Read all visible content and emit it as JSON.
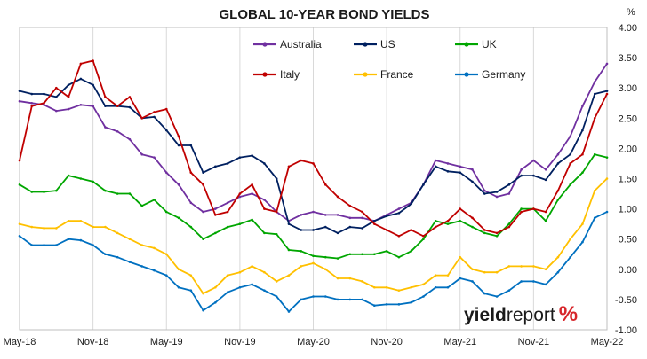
{
  "chart_data": {
    "type": "line",
    "title": "GLOBAL 10-YEAR BOND YIELDS",
    "ylabel": "%",
    "xlabel": "",
    "ylim": [
      -1.0,
      4.0
    ],
    "yticks": [
      -1.0,
      -0.5,
      0.0,
      0.5,
      1.0,
      1.5,
      2.0,
      2.5,
      3.0,
      3.5,
      4.0
    ],
    "ytick_labels": [
      "-1.00",
      "-0.50",
      "0.00",
      "0.50",
      "1.00",
      "1.50",
      "2.00",
      "2.50",
      "3.00",
      "3.50",
      "4.00"
    ],
    "x_ticks": [
      "May-18",
      "Nov-18",
      "May-19",
      "Nov-19",
      "May-20",
      "Nov-20",
      "May-21",
      "Nov-21",
      "May-22"
    ],
    "grid": "vertical",
    "legend": "top",
    "x": [
      "May-18",
      "Jun-18",
      "Jul-18",
      "Aug-18",
      "Sep-18",
      "Oct-18",
      "Nov-18",
      "Dec-18",
      "Jan-19",
      "Feb-19",
      "Mar-19",
      "Apr-19",
      "May-19",
      "Jun-19",
      "Jul-19",
      "Aug-19",
      "Sep-19",
      "Oct-19",
      "Nov-19",
      "Dec-19",
      "Jan-20",
      "Feb-20",
      "Mar-20",
      "Apr-20",
      "May-20",
      "Jun-20",
      "Jul-20",
      "Aug-20",
      "Sep-20",
      "Oct-20",
      "Nov-20",
      "Dec-20",
      "Jan-21",
      "Feb-21",
      "Mar-21",
      "Apr-21",
      "May-21",
      "Jun-21",
      "Jul-21",
      "Aug-21",
      "Sep-21",
      "Oct-21",
      "Nov-21",
      "Dec-21",
      "Jan-22",
      "Feb-22",
      "Mar-22",
      "Apr-22",
      "May-22"
    ],
    "series": [
      {
        "name": "Australia",
        "color": "#7030a0",
        "values": [
          2.78,
          2.75,
          2.72,
          2.62,
          2.65,
          2.72,
          2.7,
          2.35,
          2.28,
          2.15,
          1.9,
          1.85,
          1.6,
          1.4,
          1.1,
          0.95,
          1.0,
          1.1,
          1.2,
          1.25,
          1.15,
          0.95,
          0.8,
          0.9,
          0.95,
          0.9,
          0.9,
          0.85,
          0.85,
          0.8,
          0.9,
          1.0,
          1.1,
          1.4,
          1.8,
          1.75,
          1.7,
          1.65,
          1.3,
          1.2,
          1.25,
          1.65,
          1.8,
          1.65,
          1.9,
          2.2,
          2.7,
          3.1,
          3.4
        ]
      },
      {
        "name": "US",
        "color": "#002060",
        "values": [
          2.95,
          2.9,
          2.9,
          2.85,
          3.05,
          3.15,
          3.05,
          2.7,
          2.7,
          2.68,
          2.5,
          2.52,
          2.3,
          2.05,
          2.05,
          1.6,
          1.7,
          1.75,
          1.85,
          1.88,
          1.75,
          1.5,
          0.75,
          0.65,
          0.65,
          0.7,
          0.6,
          0.7,
          0.68,
          0.8,
          0.88,
          0.93,
          1.08,
          1.4,
          1.7,
          1.62,
          1.6,
          1.45,
          1.25,
          1.28,
          1.4,
          1.55,
          1.55,
          1.48,
          1.75,
          1.9,
          2.3,
          2.9,
          2.95
        ]
      },
      {
        "name": "UK",
        "color": "#00a600",
        "values": [
          1.4,
          1.28,
          1.28,
          1.3,
          1.55,
          1.5,
          1.45,
          1.3,
          1.25,
          1.25,
          1.05,
          1.15,
          0.95,
          0.85,
          0.7,
          0.5,
          0.6,
          0.7,
          0.75,
          0.82,
          0.6,
          0.58,
          0.32,
          0.3,
          0.22,
          0.2,
          0.18,
          0.25,
          0.25,
          0.25,
          0.3,
          0.2,
          0.3,
          0.5,
          0.8,
          0.75,
          0.8,
          0.7,
          0.6,
          0.55,
          0.75,
          1.0,
          1.0,
          0.8,
          1.15,
          1.4,
          1.6,
          1.9,
          1.85
        ]
      },
      {
        "name": "Italy",
        "color": "#c00000",
        "values": [
          1.8,
          2.7,
          2.75,
          3.0,
          2.85,
          3.4,
          3.45,
          2.85,
          2.7,
          2.85,
          2.5,
          2.6,
          2.65,
          2.2,
          1.6,
          1.4,
          0.9,
          0.95,
          1.25,
          1.4,
          1.0,
          0.95,
          1.7,
          1.8,
          1.75,
          1.4,
          1.2,
          1.05,
          0.95,
          0.75,
          0.65,
          0.55,
          0.65,
          0.55,
          0.7,
          0.8,
          1.0,
          0.85,
          0.65,
          0.6,
          0.7,
          0.95,
          1.0,
          0.95,
          1.3,
          1.75,
          1.9,
          2.5,
          2.9
        ]
      },
      {
        "name": "France",
        "color": "#ffc000",
        "values": [
          0.75,
          0.7,
          0.68,
          0.68,
          0.8,
          0.8,
          0.7,
          0.7,
          0.6,
          0.5,
          0.4,
          0.35,
          0.25,
          0.0,
          -0.1,
          -0.4,
          -0.3,
          -0.1,
          -0.05,
          0.05,
          -0.05,
          -0.2,
          -0.1,
          0.05,
          0.1,
          0.0,
          -0.15,
          -0.15,
          -0.2,
          -0.3,
          -0.3,
          -0.35,
          -0.3,
          -0.25,
          -0.1,
          -0.1,
          0.2,
          0.0,
          -0.05,
          -0.05,
          0.05,
          0.05,
          0.05,
          0.0,
          0.2,
          0.5,
          0.75,
          1.3,
          1.5
        ]
      },
      {
        "name": "Germany",
        "color": "#0070c0",
        "values": [
          0.55,
          0.4,
          0.4,
          0.4,
          0.5,
          0.48,
          0.4,
          0.25,
          0.2,
          0.12,
          0.05,
          -0.02,
          -0.1,
          -0.3,
          -0.35,
          -0.68,
          -0.55,
          -0.38,
          -0.3,
          -0.25,
          -0.35,
          -0.45,
          -0.7,
          -0.5,
          -0.45,
          -0.45,
          -0.5,
          -0.5,
          -0.5,
          -0.6,
          -0.58,
          -0.58,
          -0.55,
          -0.45,
          -0.3,
          -0.3,
          -0.15,
          -0.2,
          -0.4,
          -0.45,
          -0.35,
          -0.2,
          -0.2,
          -0.25,
          -0.05,
          0.2,
          0.45,
          0.85,
          0.95
        ]
      }
    ]
  },
  "brand": {
    "part1": "yield",
    "part2": "report",
    "part3": "%"
  }
}
